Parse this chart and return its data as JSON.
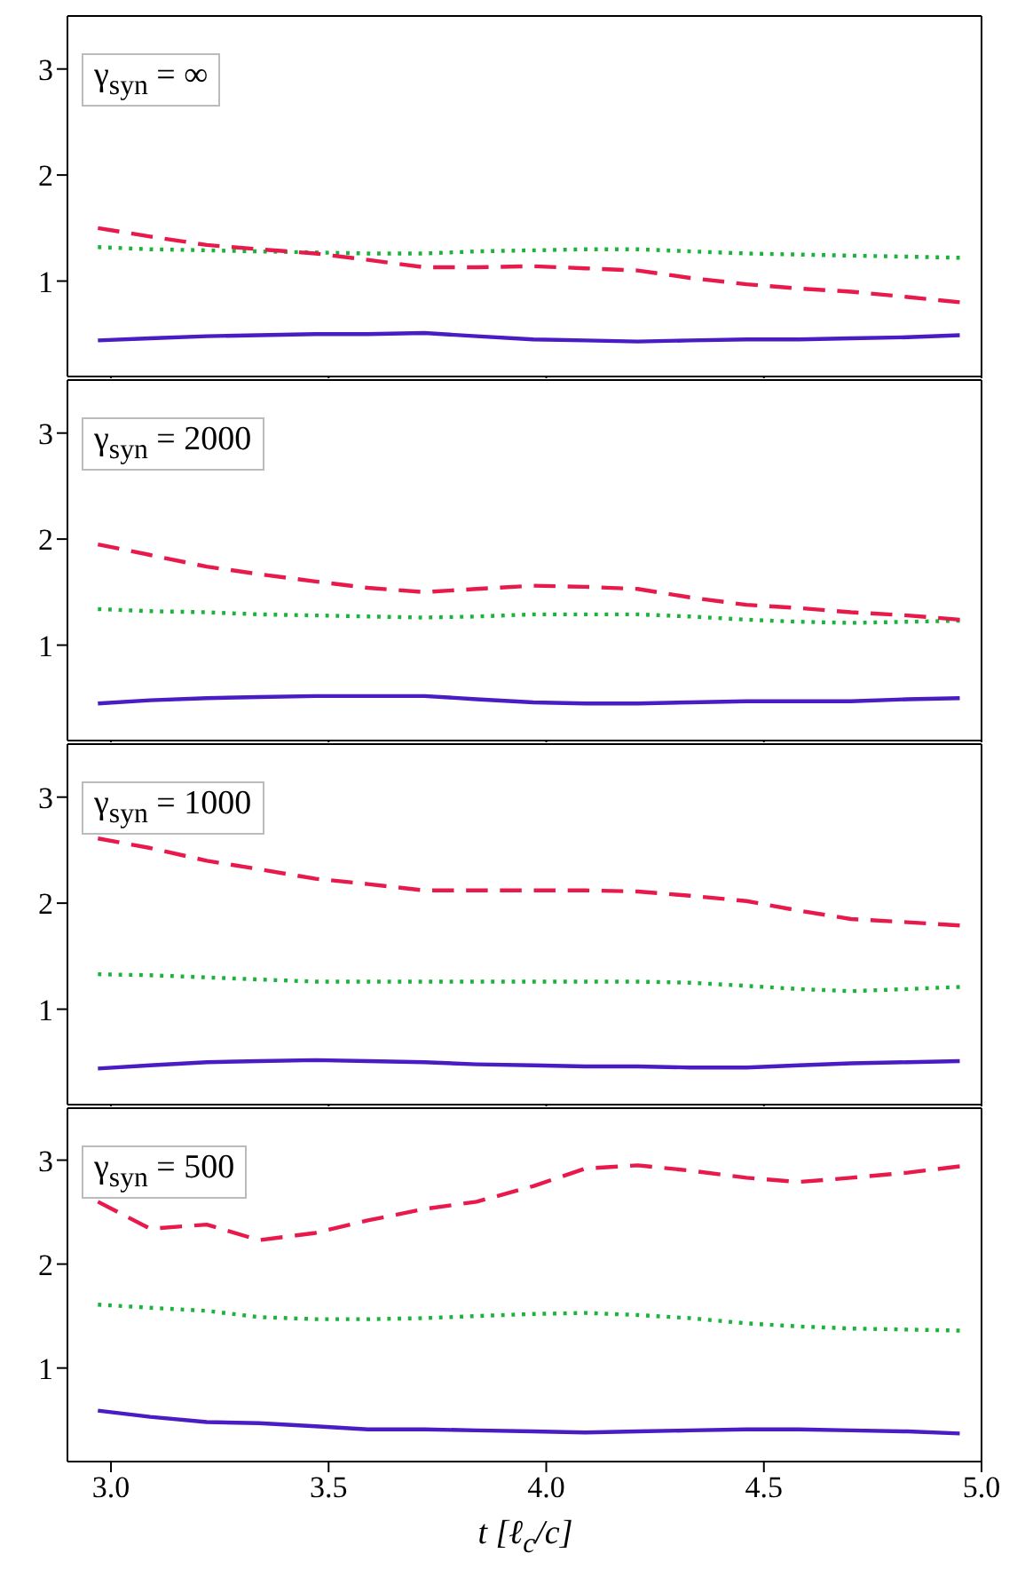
{
  "chart_data": [
    {
      "type": "line",
      "annotations": [
        "γ$_{syn}$ = ∞"
      ],
      "x": [
        2.97,
        3.09,
        3.22,
        3.34,
        3.47,
        3.59,
        3.72,
        3.84,
        3.97,
        4.09,
        4.21,
        4.33,
        4.46,
        4.58,
        4.7,
        4.83,
        4.95
      ],
      "xlim": [
        2.9,
        5.0
      ],
      "xticks": [
        {
          "value": 3,
          "label": null
        },
        {
          "value": 3.5,
          "label": null
        },
        {
          "value": 4,
          "label": null
        },
        {
          "value": 4.5,
          "label": null
        },
        {
          "value": 5,
          "label": null
        }
      ],
      "ylim": [
        0.1,
        3.5
      ],
      "yticks": [
        1,
        2,
        3
      ],
      "tick_labels": "y",
      "marker": "none",
      "series": [
        {
          "color": "#4a1cc4",
          "line_style": "solid",
          "values": [
            0.44,
            0.46,
            0.48,
            0.49,
            0.5,
            0.5,
            0.51,
            0.48,
            0.45,
            0.44,
            0.43,
            0.44,
            0.45,
            0.45,
            0.46,
            0.47,
            0.49
          ]
        },
        {
          "color": "#1cb33c",
          "line_style": "dotted",
          "values": [
            1.32,
            1.3,
            1.29,
            1.28,
            1.27,
            1.26,
            1.26,
            1.28,
            1.29,
            1.3,
            1.3,
            1.28,
            1.26,
            1.25,
            1.24,
            1.23,
            1.22
          ]
        },
        {
          "color": "#e8194b",
          "line_style": "dashed",
          "values": [
            1.5,
            1.42,
            1.34,
            1.3,
            1.26,
            1.2,
            1.13,
            1.13,
            1.14,
            1.12,
            1.1,
            1.03,
            0.97,
            0.93,
            0.9,
            0.85,
            0.8
          ]
        }
      ]
    },
    {
      "type": "line",
      "annotations": [
        "γ$_{syn}$ = 2000"
      ],
      "x": [
        2.97,
        3.09,
        3.22,
        3.34,
        3.47,
        3.59,
        3.72,
        3.84,
        3.97,
        4.09,
        4.21,
        4.33,
        4.46,
        4.58,
        4.7,
        4.83,
        4.95
      ],
      "xlim": [
        2.9,
        5.0
      ],
      "xticks": [
        {
          "value": 3,
          "label": null
        },
        {
          "value": 3.5,
          "label": null
        },
        {
          "value": 4,
          "label": null
        },
        {
          "value": 4.5,
          "label": null
        },
        {
          "value": 5,
          "label": null
        }
      ],
      "ylim": [
        0.1,
        3.5
      ],
      "yticks": [
        1,
        2,
        3
      ],
      "tick_labels": "y",
      "marker": "none",
      "series": [
        {
          "color": "#4a1cc4",
          "line_style": "solid",
          "values": [
            0.45,
            0.48,
            0.5,
            0.51,
            0.52,
            0.52,
            0.52,
            0.49,
            0.46,
            0.45,
            0.45,
            0.46,
            0.47,
            0.47,
            0.47,
            0.49,
            0.5
          ]
        },
        {
          "color": "#1cb33c",
          "line_style": "dotted",
          "values": [
            1.34,
            1.32,
            1.31,
            1.29,
            1.28,
            1.27,
            1.26,
            1.27,
            1.29,
            1.29,
            1.29,
            1.27,
            1.24,
            1.22,
            1.21,
            1.22,
            1.23
          ]
        },
        {
          "color": "#e8194b",
          "line_style": "dashed",
          "values": [
            1.95,
            1.85,
            1.74,
            1.67,
            1.6,
            1.54,
            1.5,
            1.53,
            1.56,
            1.55,
            1.53,
            1.45,
            1.38,
            1.35,
            1.31,
            1.28,
            1.24
          ]
        }
      ]
    },
    {
      "type": "line",
      "annotations": [
        "γ$_{syn}$ = 1000"
      ],
      "x": [
        2.97,
        3.09,
        3.22,
        3.34,
        3.47,
        3.59,
        3.72,
        3.84,
        3.97,
        4.09,
        4.21,
        4.33,
        4.46,
        4.58,
        4.7,
        4.83,
        4.95
      ],
      "xlim": [
        2.9,
        5.0
      ],
      "xticks": [
        {
          "value": 3,
          "label": null
        },
        {
          "value": 3.5,
          "label": null
        },
        {
          "value": 4,
          "label": null
        },
        {
          "value": 4.5,
          "label": null
        },
        {
          "value": 5,
          "label": null
        }
      ],
      "ylim": [
        0.1,
        3.5
      ],
      "yticks": [
        1,
        2,
        3
      ],
      "tick_labels": "y",
      "marker": "none",
      "series": [
        {
          "color": "#4a1cc4",
          "line_style": "solid",
          "values": [
            0.44,
            0.47,
            0.5,
            0.51,
            0.52,
            0.51,
            0.5,
            0.48,
            0.47,
            0.46,
            0.46,
            0.45,
            0.45,
            0.47,
            0.49,
            0.5,
            0.51
          ]
        },
        {
          "color": "#1cb33c",
          "line_style": "dotted",
          "values": [
            1.33,
            1.32,
            1.3,
            1.28,
            1.26,
            1.26,
            1.26,
            1.26,
            1.26,
            1.26,
            1.26,
            1.25,
            1.22,
            1.19,
            1.17,
            1.19,
            1.21
          ]
        },
        {
          "color": "#e8194b",
          "line_style": "dashed",
          "values": [
            2.61,
            2.52,
            2.4,
            2.32,
            2.23,
            2.18,
            2.12,
            2.12,
            2.12,
            2.12,
            2.11,
            2.07,
            2.02,
            1.93,
            1.85,
            1.82,
            1.79
          ]
        }
      ]
    },
    {
      "type": "line",
      "annotations": [
        "γ$_{syn}$ = 500"
      ],
      "xlabel": "t [ℓ$_{c}$/c]",
      "x": [
        2.97,
        3.09,
        3.22,
        3.34,
        3.47,
        3.59,
        3.72,
        3.84,
        3.97,
        4.09,
        4.21,
        4.33,
        4.46,
        4.58,
        4.7,
        4.83,
        4.95
      ],
      "xlim": [
        2.9,
        5.0
      ],
      "xticks": [
        {
          "value": 3,
          "label": "3.0"
        },
        {
          "value": 3.5,
          "label": "3.5"
        },
        {
          "value": 4,
          "label": "4.0"
        },
        {
          "value": 4.5,
          "label": "4.5"
        },
        {
          "value": 5,
          "label": "5.0"
        }
      ],
      "ylim": [
        0.1,
        3.5
      ],
      "yticks": [
        1,
        2,
        3
      ],
      "marker": "none",
      "series": [
        {
          "color": "#4a1cc4",
          "line_style": "solid",
          "values": [
            0.59,
            0.53,
            0.48,
            0.47,
            0.44,
            0.41,
            0.41,
            0.4,
            0.39,
            0.38,
            0.39,
            0.4,
            0.41,
            0.41,
            0.4,
            0.39,
            0.37
          ]
        },
        {
          "color": "#1cb33c",
          "line_style": "dotted",
          "values": [
            1.61,
            1.58,
            1.55,
            1.49,
            1.47,
            1.47,
            1.48,
            1.5,
            1.52,
            1.53,
            1.51,
            1.48,
            1.43,
            1.4,
            1.38,
            1.37,
            1.36
          ]
        },
        {
          "color": "#e8194b",
          "line_style": "dashed",
          "values": [
            2.6,
            2.34,
            2.38,
            2.23,
            2.3,
            2.42,
            2.53,
            2.6,
            2.75,
            2.92,
            2.95,
            2.9,
            2.83,
            2.79,
            2.83,
            2.88,
            2.94
          ]
        }
      ]
    }
  ]
}
